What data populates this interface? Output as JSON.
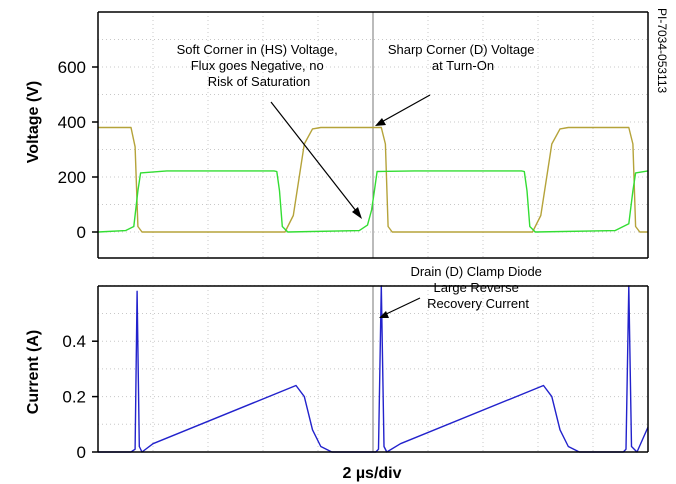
{
  "reference_id": "PI-7034-053113",
  "chart_data": [
    {
      "type": "line",
      "ylabel": "Voltage (V)",
      "ylim": [
        0,
        800
      ],
      "yticks": [
        0,
        200,
        400,
        600
      ],
      "x_divisions": 10,
      "grid": true,
      "series": [
        {
          "color": "#b5a33a",
          "points": [
            [
              0,
              380
            ],
            [
              1.2,
              380
            ],
            [
              1.35,
              310
            ],
            [
              1.45,
              20
            ],
            [
              1.6,
              0
            ],
            [
              6.8,
              0
            ],
            [
              7.1,
              60
            ],
            [
              7.5,
              320
            ],
            [
              7.8,
              375
            ],
            [
              8.1,
              380
            ],
            [
              9.8,
              380
            ],
            [
              10.3,
              380
            ],
            [
              10.45,
              320
            ],
            [
              10.55,
              20
            ],
            [
              10.7,
              0
            ],
            [
              15.8,
              0
            ],
            [
              16.1,
              60
            ],
            [
              16.5,
              320
            ],
            [
              16.8,
              375
            ],
            [
              17.1,
              380
            ],
            [
              18.8,
              380
            ],
            [
              19.3,
              380
            ],
            [
              19.45,
              320
            ],
            [
              19.55,
              20
            ],
            [
              19.7,
              0
            ],
            [
              20.0,
              0
            ]
          ]
        },
        {
          "color": "#33dd33",
          "points": [
            [
              0,
              0
            ],
            [
              1.0,
              5
            ],
            [
              1.3,
              20
            ],
            [
              1.45,
              150
            ],
            [
              1.55,
              215
            ],
            [
              2.5,
              222
            ],
            [
              6.4,
              222
            ],
            [
              6.5,
              220
            ],
            [
              6.6,
              150
            ],
            [
              6.7,
              20
            ],
            [
              6.9,
              0
            ],
            [
              9.5,
              5
            ],
            [
              9.8,
              25
            ],
            [
              9.95,
              80
            ],
            [
              10.05,
              150
            ],
            [
              10.15,
              220
            ],
            [
              11.5,
              222
            ],
            [
              15.4,
              222
            ],
            [
              15.5,
              220
            ],
            [
              15.6,
              150
            ],
            [
              15.7,
              20
            ],
            [
              15.9,
              0
            ],
            [
              18.8,
              5
            ],
            [
              19.3,
              30
            ],
            [
              19.45,
              150
            ],
            [
              19.55,
              215
            ],
            [
              20,
              222
            ]
          ]
        }
      ],
      "annotations": [
        {
          "lines": [
            "Soft Corner in (HS) Voltage,",
            "Flux goes Negative, no",
            "Risk of Saturation"
          ]
        },
        {
          "lines": [
            "Sharp Corner (D) Voltage",
            "at Turn-On"
          ]
        }
      ]
    },
    {
      "type": "line",
      "ylabel": "Current (A)",
      "ylim": [
        0,
        0.6
      ],
      "yticks": [
        0,
        0.2,
        0.4
      ],
      "ytick_labels": [
        "0",
        "0.2",
        "0.4"
      ],
      "x_divisions": 10,
      "xlabel": "2 µs/div",
      "grid": true,
      "series": [
        {
          "color": "#2222cc",
          "points": [
            [
              0,
              0
            ],
            [
              1.2,
              0
            ],
            [
              1.35,
              0.01
            ],
            [
              1.42,
              0.58
            ],
            [
              1.5,
              0.02
            ],
            [
              1.6,
              0
            ],
            [
              2.0,
              0.03
            ],
            [
              7.2,
              0.24
            ],
            [
              7.5,
              0.2
            ],
            [
              7.8,
              0.08
            ],
            [
              8.1,
              0.02
            ],
            [
              8.5,
              0
            ],
            [
              10.1,
              0
            ],
            [
              10.2,
              0.01
            ],
            [
              10.3,
              0.6
            ],
            [
              10.4,
              0.02
            ],
            [
              10.5,
              0
            ],
            [
              11.0,
              0.03
            ],
            [
              16.2,
              0.24
            ],
            [
              16.5,
              0.2
            ],
            [
              16.8,
              0.08
            ],
            [
              17.1,
              0.02
            ],
            [
              17.5,
              0
            ],
            [
              19.1,
              0
            ],
            [
              19.2,
              0.01
            ],
            [
              19.3,
              0.6
            ],
            [
              19.4,
              0.02
            ],
            [
              19.6,
              0
            ],
            [
              20,
              0.09
            ]
          ]
        }
      ],
      "annotations": [
        {
          "lines": [
            "Drain (D) Clamp Diode",
            "Large Reverse",
            "Recovery Current"
          ]
        }
      ]
    }
  ]
}
